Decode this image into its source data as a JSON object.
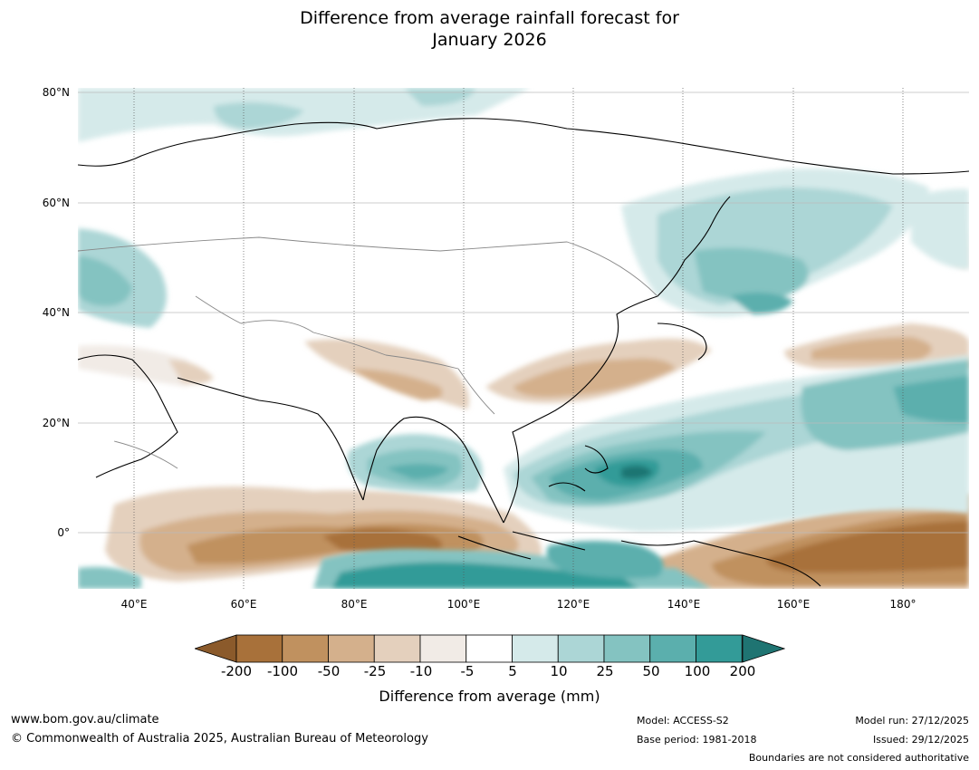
{
  "title_line1": "Difference from average rainfall forecast for",
  "title_line2": "January 2026",
  "lat_labels": [
    "80°N",
    "60°N",
    "40°N",
    "20°N",
    "0°"
  ],
  "lon_labels": [
    "40°E",
    "60°E",
    "80°E",
    "100°E",
    "120°E",
    "140°E",
    "160°E",
    "180°"
  ],
  "colorbar": {
    "labels": [
      "-200",
      "-100",
      "-50",
      "-25",
      "-10",
      "-5",
      "5",
      "10",
      "25",
      "50",
      "100",
      "200"
    ],
    "colors": [
      "#a8713a",
      "#c0915f",
      "#d4b08c",
      "#e4d0bd",
      "#f1ebe6",
      "#ffffff",
      "#d5eaea",
      "#acd6d6",
      "#84c3c1",
      "#5bafad",
      "#339b98",
      "#1f7472",
      "#8b5a2b"
    ],
    "title": "Difference from average (mm)"
  },
  "footer": {
    "url": "www.bom.gov.au/climate",
    "copyright": "© Commonwealth of Australia 2025, Australian Bureau of Meteorology",
    "model": "Model: ACCESS-S2",
    "base_period": "Base period: 1981-2018",
    "model_run": "Model run: 27/12/2025",
    "issued": "Issued: 29/12/2025",
    "disclaimer": "Boundaries are not considered authoritative"
  }
}
